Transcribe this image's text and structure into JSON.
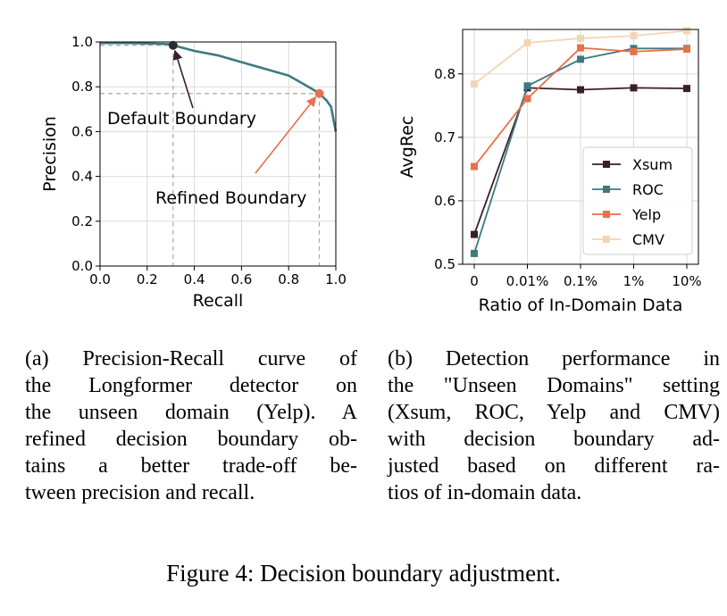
{
  "chart_data": [
    {
      "type": "line",
      "subplot": "(a)",
      "xlabel": "Recall",
      "ylabel": "Precision",
      "xlim": [
        0.0,
        1.0
      ],
      "ylim": [
        0.0,
        1.0
      ],
      "xticks": [
        "0.0",
        "0.2",
        "0.4",
        "0.6",
        "0.8",
        "1.0"
      ],
      "yticks": [
        "0.0",
        "0.2",
        "0.4",
        "0.6",
        "0.8",
        "1.0"
      ],
      "grid": true,
      "line_color": "#3d7a80",
      "curve": {
        "x": [
          0.0,
          0.1,
          0.2,
          0.3,
          0.31,
          0.4,
          0.5,
          0.6,
          0.7,
          0.8,
          0.85,
          0.9,
          0.93,
          0.96,
          0.98,
          1.0
        ],
        "y": [
          0.995,
          0.995,
          0.993,
          0.99,
          0.985,
          0.96,
          0.94,
          0.91,
          0.88,
          0.85,
          0.82,
          0.79,
          0.77,
          0.74,
          0.71,
          0.6
        ]
      },
      "points": [
        {
          "name": "Default Boundary",
          "x": 0.31,
          "y": 0.985,
          "color": "#2c2c2c",
          "arrow_color": "#3a1f2a"
        },
        {
          "name": "Refined Boundary",
          "x": 0.93,
          "y": 0.77,
          "color": "#e8704a",
          "arrow_color": "#e8704a"
        }
      ],
      "annotations": [
        "Default Boundary",
        "Refined Boundary"
      ]
    },
    {
      "type": "line",
      "subplot": "(b)",
      "xlabel": "Ratio of In-Domain Data",
      "ylabel": "AvgRec",
      "categories": [
        "0",
        "0.01%",
        "0.1%",
        "1%",
        "10%"
      ],
      "ylim": [
        0.5,
        0.87
      ],
      "yticks": [
        "0.5",
        "0.6",
        "0.7",
        "0.8"
      ],
      "grid": true,
      "legend": "lower-right",
      "series": [
        {
          "name": "Xsum",
          "color": "#3a1f2a",
          "values": [
            0.547,
            0.778,
            0.775,
            0.778,
            0.777
          ]
        },
        {
          "name": "ROC",
          "color": "#3d7a80",
          "values": [
            0.517,
            0.781,
            0.823,
            0.84,
            0.84
          ]
        },
        {
          "name": "Yelp",
          "color": "#e8704a",
          "values": [
            0.654,
            0.761,
            0.841,
            0.835,
            0.839
          ]
        },
        {
          "name": "CMV",
          "color": "#f4d5b3",
          "values": [
            0.784,
            0.849,
            0.856,
            0.86,
            0.868
          ]
        }
      ]
    }
  ],
  "captions": {
    "a_lines": [
      "(a) Precision-Recall curve of",
      "the Longformer detector on",
      "the unseen domain (Yelp). A",
      "refined decision boundary ob-",
      "tains a better trade-off be-",
      "tween precision and recall."
    ],
    "b_lines": [
      "(b) Detection performance in",
      "the \"Unseen Domains\" setting",
      "(Xsum, ROC, Yelp and CMV)",
      "with decision boundary ad-",
      "justed based on different ra-",
      "tios of in-domain data."
    ],
    "figure": "Figure 4: Decision boundary adjustment."
  }
}
